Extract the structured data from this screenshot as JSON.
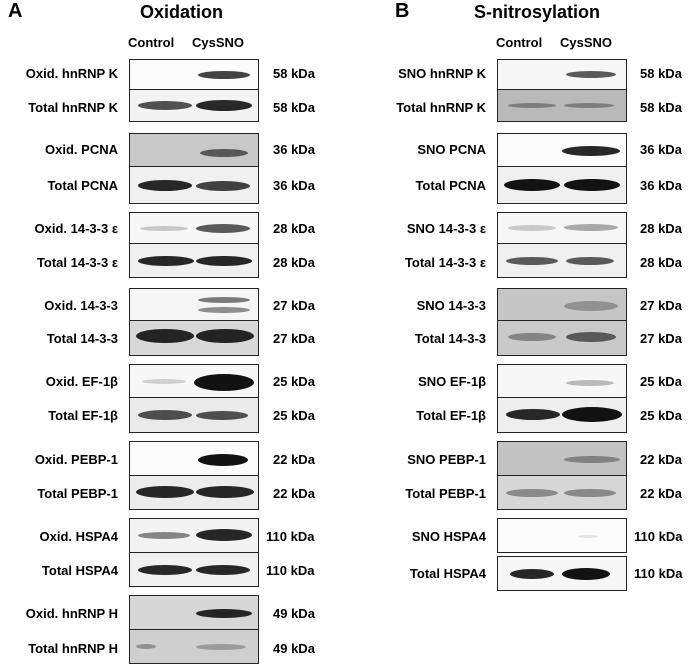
{
  "panel_a": {
    "letter": "A",
    "title": "Oxidation",
    "col_control": "Control",
    "col_cyssno": "CysSNO",
    "rows": [
      {
        "label": "Oxid. hnRNP K",
        "kda": "58 kDa"
      },
      {
        "label": "Total hnRNP K",
        "kda": "58 kDa"
      },
      {
        "label": "Oxid. PCNA",
        "kda": "36 kDa"
      },
      {
        "label": "Total PCNA",
        "kda": "36 kDa"
      },
      {
        "label": "Oxid. 14-3-3 ε",
        "kda": "28 kDa"
      },
      {
        "label": "Total 14-3-3 ε",
        "kda": "28 kDa"
      },
      {
        "label": "Oxid. 14-3-3",
        "kda": "27 kDa"
      },
      {
        "label": "Total 14-3-3",
        "kda": "27 kDa"
      },
      {
        "label": "Oxid. EF-1β",
        "kda": "25 kDa"
      },
      {
        "label": "Total EF-1β",
        "kda": "25 kDa"
      },
      {
        "label": "Oxid. PEBP-1",
        "kda": "22 kDa"
      },
      {
        "label": "Total PEBP-1",
        "kda": "22 kDa"
      },
      {
        "label": "Oxid. HSPA4",
        "kda": "110 kDa"
      },
      {
        "label": "Total HSPA4",
        "kda": "110 kDa"
      },
      {
        "label": "Oxid. hnRNP H",
        "kda": "49 kDa"
      },
      {
        "label": "Total hnRNP H",
        "kda": "49 kDa"
      }
    ]
  },
  "panel_b": {
    "letter": "B",
    "title": "S-nitrosylation",
    "col_control": "Control",
    "col_cyssno": "CysSNO",
    "rows": [
      {
        "label": "SNO hnRNP K",
        "kda": "58 kDa"
      },
      {
        "label": "Total hnRNP K",
        "kda": "58 kDa"
      },
      {
        "label": "SNO PCNA",
        "kda": "36 kDa"
      },
      {
        "label": "Total PCNA",
        "kda": "36 kDa"
      },
      {
        "label": "SNO 14-3-3 ε",
        "kda": "28 kDa"
      },
      {
        "label": "Total 14-3-3 ε",
        "kda": "28 kDa"
      },
      {
        "label": "SNO 14-3-3",
        "kda": "27 kDa"
      },
      {
        "label": "Total 14-3-3",
        "kda": "27 kDa"
      },
      {
        "label": "SNO EF-1β",
        "kda": "25 kDa"
      },
      {
        "label": "Total EF-1β",
        "kda": "25 kDa"
      },
      {
        "label": "SNO PEBP-1",
        "kda": "22 kDa"
      },
      {
        "label": "Total PEBP-1",
        "kda": "22 kDa"
      },
      {
        "label": "SNO HSPA4",
        "kda": "110 kDa"
      },
      {
        "label": "Total HSPA4",
        "kda": "110 kDa"
      }
    ]
  }
}
